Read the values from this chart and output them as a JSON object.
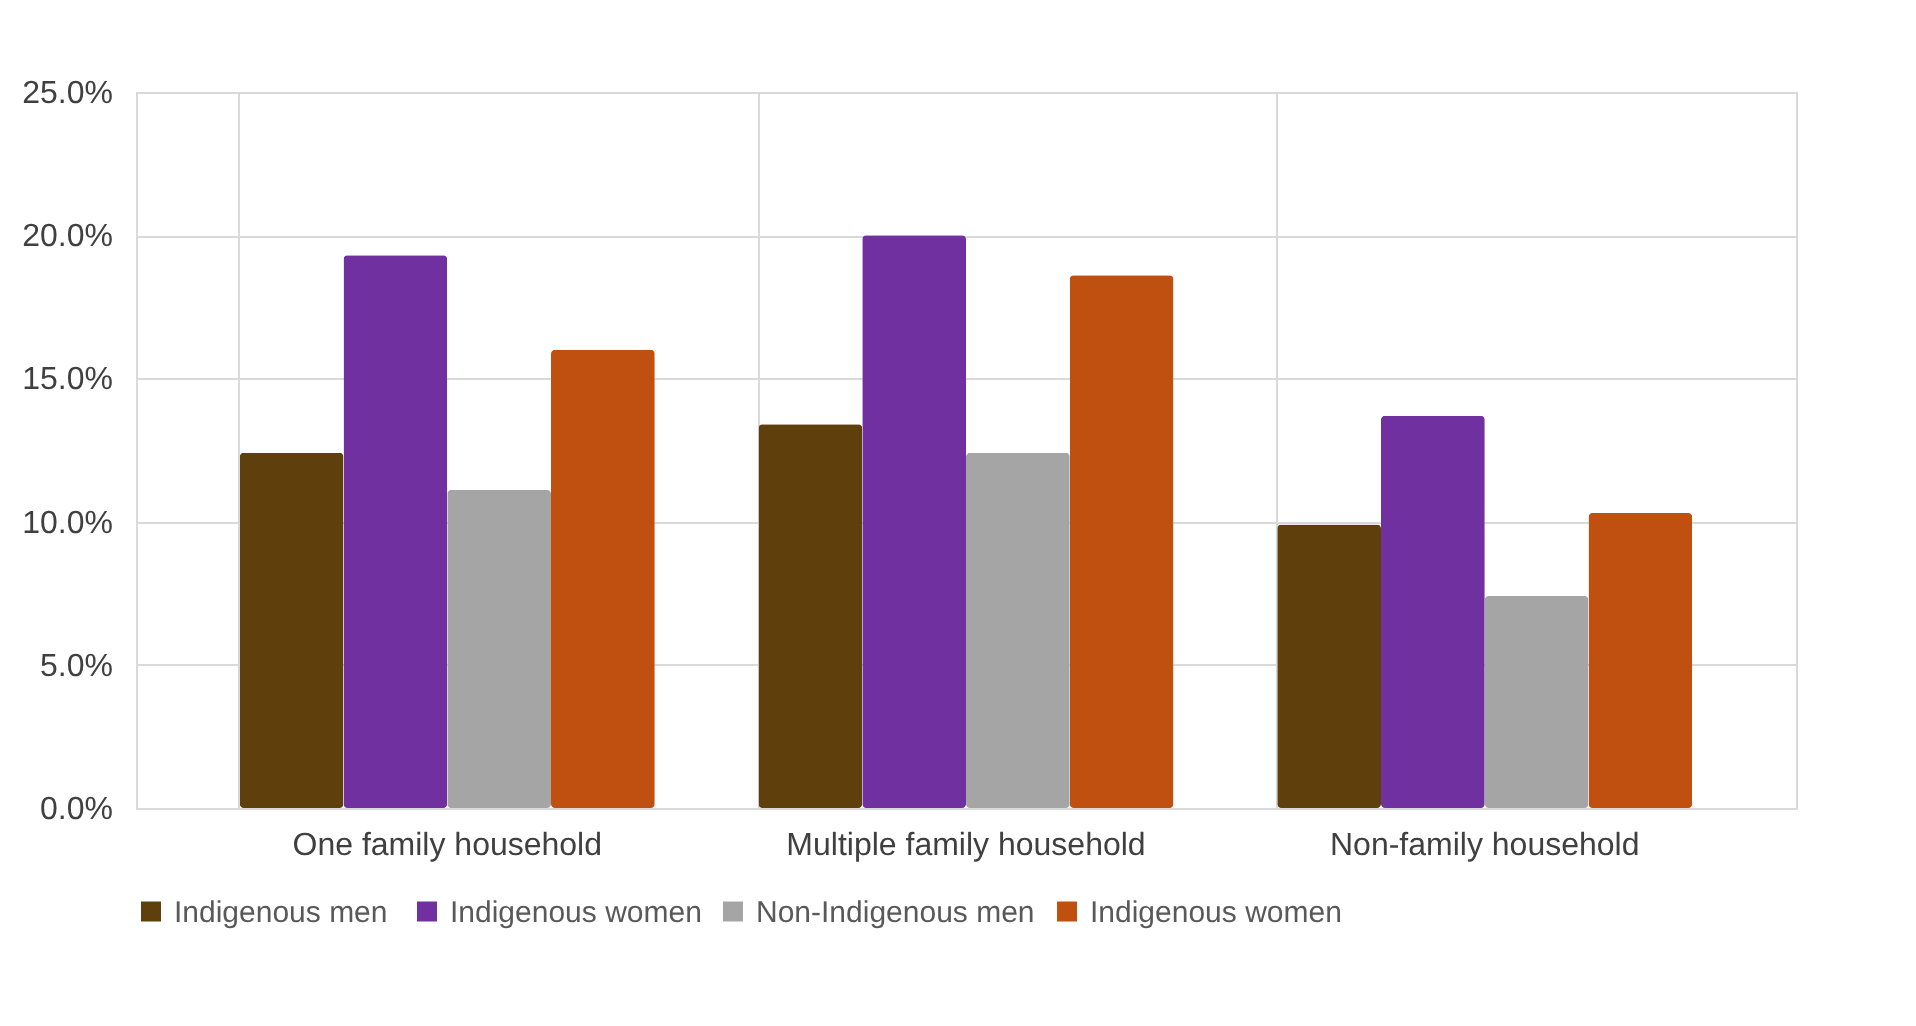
{
  "chart_data": {
    "type": "bar",
    "categories": [
      "One family household",
      "Multiple family household",
      "Non-family household"
    ],
    "series": [
      {
        "name": "Indigenous  men",
        "color": "#5f3f0b",
        "values": [
          12.4,
          13.4,
          9.9
        ]
      },
      {
        "name": "Indigenous women",
        "color": "#7030a0",
        "values": [
          19.3,
          20.0,
          13.7
        ]
      },
      {
        "name": "Non-Indigenous men",
        "color": "#a5a5a5",
        "values": [
          11.1,
          12.4,
          7.4
        ]
      },
      {
        "name": "Indigenous women",
        "color": "#c05010",
        "values": [
          16.0,
          18.6,
          10.3
        ]
      }
    ],
    "ylim": [
      0,
      25
    ],
    "yticks": [
      {
        "value": 0,
        "label": "0.0%"
      },
      {
        "value": 5,
        "label": "5.0%"
      },
      {
        "value": 10,
        "label": "10.0%"
      },
      {
        "value": 15,
        "label": "15.0%"
      },
      {
        "value": 20,
        "label": "20.0%"
      },
      {
        "value": 25,
        "label": "25.0%"
      }
    ],
    "grid": true,
    "legend": "bottom"
  }
}
